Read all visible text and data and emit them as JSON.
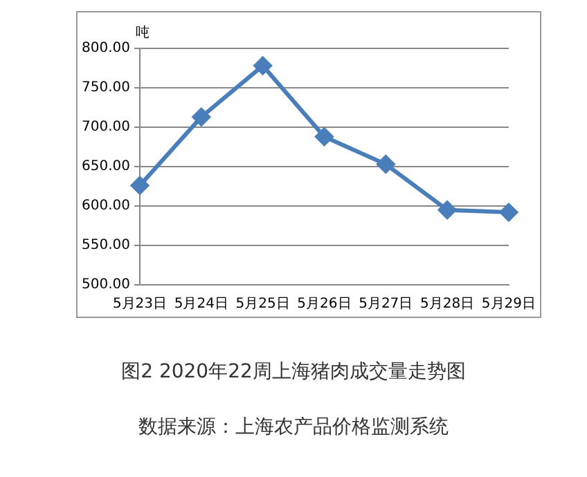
{
  "chart_data": {
    "type": "line",
    "title": "图2 2020年22周上海猪肉成交量走势图",
    "ylabel": "吨",
    "annotations": [
      "数据来源：上海农产品价格监测系统"
    ],
    "categories": [
      "5月23日",
      "5月24日",
      "5月25日",
      "5月26日",
      "5月27日",
      "5月28日",
      "5月29日"
    ],
    "series": [
      {
        "color": "#4a7ebb",
        "values": [
          626,
          713,
          778,
          688,
          653,
          595,
          592
        ]
      }
    ],
    "ylim": [
      500,
      800
    ],
    "yticks": [
      {
        "value": 500,
        "label": "500.00"
      },
      {
        "value": 550,
        "label": "550.00"
      },
      {
        "value": 600,
        "label": "600.00"
      },
      {
        "value": 650,
        "label": "650.00"
      },
      {
        "value": 700,
        "label": "700.00"
      },
      {
        "value": 750,
        "label": "750.00"
      },
      {
        "value": 800,
        "label": "800.00"
      }
    ],
    "grid": "y",
    "marker": "diamond",
    "line_style": "solid",
    "legend": false
  }
}
